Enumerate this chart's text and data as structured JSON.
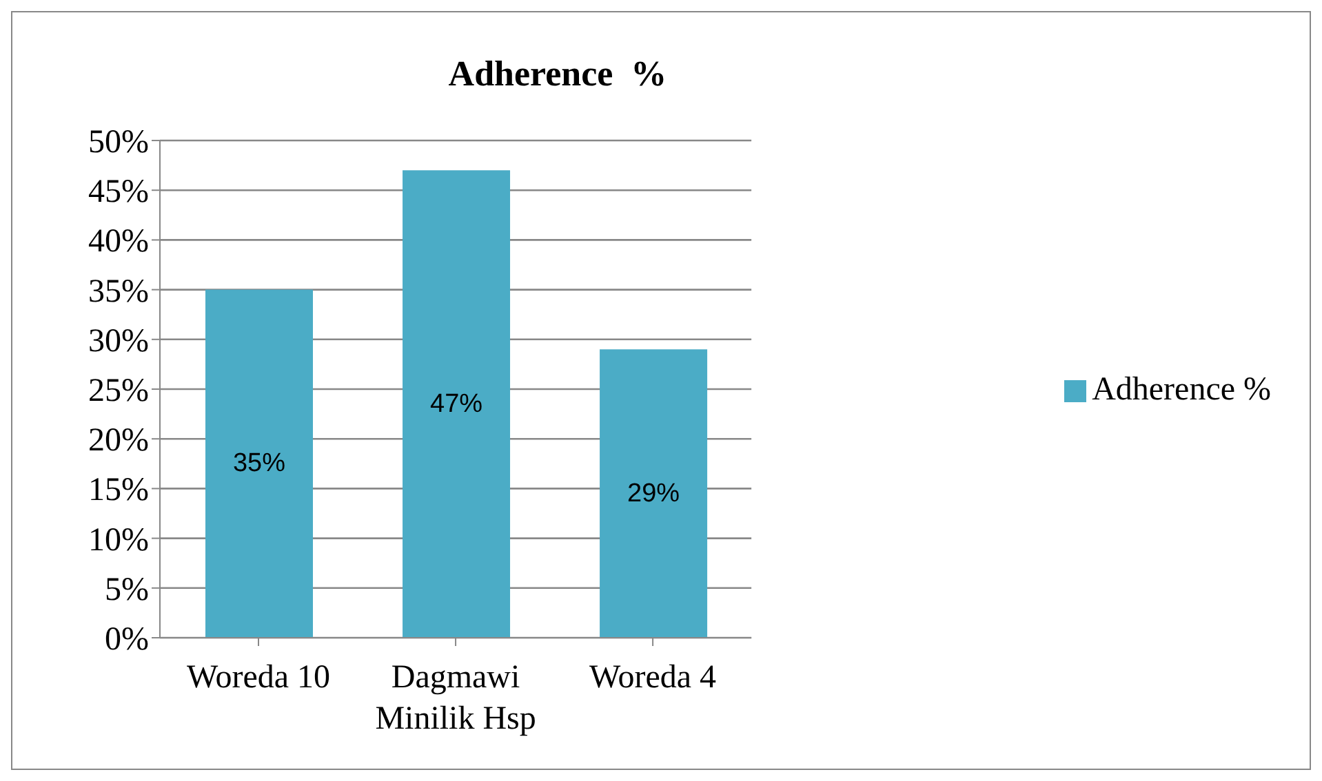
{
  "chart_data": {
    "type": "bar",
    "title": "Adherence  %",
    "categories": [
      "Woreda 10",
      "Dagmawi Minilik Hsp",
      "Woreda 4"
    ],
    "series": [
      {
        "name": "Adherence %",
        "color": "#4bacc6",
        "values": [
          35,
          47,
          29
        ],
        "value_labels": [
          "35%",
          "47%",
          "29%"
        ]
      }
    ],
    "ylim": [
      0,
      50
    ],
    "yticks": [
      {
        "value": 0,
        "label": "0%"
      },
      {
        "value": 5,
        "label": "5%"
      },
      {
        "value": 10,
        "label": "10%"
      },
      {
        "value": 15,
        "label": "15%"
      },
      {
        "value": 20,
        "label": "20%"
      },
      {
        "value": 25,
        "label": "25%"
      },
      {
        "value": 30,
        "label": "30%"
      },
      {
        "value": 35,
        "label": "35%"
      },
      {
        "value": 40,
        "label": "40%"
      },
      {
        "value": 45,
        "label": "45%"
      },
      {
        "value": 50,
        "label": "50%"
      }
    ],
    "grid": "y",
    "legend": "right"
  }
}
